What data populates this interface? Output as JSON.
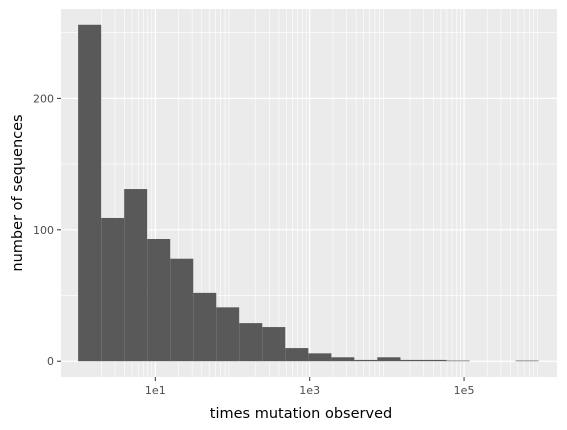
{
  "chart_data": {
    "type": "bar",
    "title": "",
    "xlabel": "times mutation observed",
    "ylabel": "number of sequences",
    "x_scale": "log10",
    "xlim": [
      0.6,
      1600000.0
    ],
    "ylim": [
      -12,
      268
    ],
    "x_ticks": [
      {
        "value": 10,
        "label": "1e1"
      },
      {
        "value": 1000,
        "label": "1e3"
      },
      {
        "value": 100000,
        "label": "1e5"
      }
    ],
    "y_ticks": [
      {
        "value": 0,
        "label": "0"
      },
      {
        "value": 100,
        "label": "100"
      },
      {
        "value": 200,
        "label": "200"
      }
    ],
    "grid": true,
    "legend": "none",
    "bar_color": "#595959",
    "panel_color": "#ebebeb",
    "bins": [
      {
        "x_start": 1.0,
        "x_end": 1.99,
        "count": 256
      },
      {
        "x_start": 1.99,
        "x_end": 3.95,
        "count": 109
      },
      {
        "x_start": 3.95,
        "x_end": 7.85,
        "count": 131
      },
      {
        "x_start": 7.85,
        "x_end": 15.6,
        "count": 93
      },
      {
        "x_start": 15.6,
        "x_end": 31.0,
        "count": 78
      },
      {
        "x_start": 31.0,
        "x_end": 61.6,
        "count": 52
      },
      {
        "x_start": 61.6,
        "x_end": 122,
        "count": 41
      },
      {
        "x_start": 122,
        "x_end": 243,
        "count": 29
      },
      {
        "x_start": 243,
        "x_end": 483,
        "count": 26
      },
      {
        "x_start": 483,
        "x_end": 960,
        "count": 10
      },
      {
        "x_start": 960,
        "x_end": 1910,
        "count": 6
      },
      {
        "x_start": 1910,
        "x_end": 3790,
        "count": 3
      },
      {
        "x_start": 3790,
        "x_end": 7530,
        "count": 1
      },
      {
        "x_start": 7530,
        "x_end": 15000,
        "count": 3
      },
      {
        "x_start": 15000,
        "x_end": 29800,
        "count": 1
      },
      {
        "x_start": 29800,
        "x_end": 59200,
        "count": 1
      },
      {
        "x_start": 59200,
        "x_end": 118000,
        "count": 0.5
      },
      {
        "x_start": 118000,
        "x_end": 234000,
        "count": 0
      },
      {
        "x_start": 234000,
        "x_end": 465000,
        "count": 0
      },
      {
        "x_start": 465000,
        "x_end": 924000,
        "count": 0.5
      }
    ]
  }
}
